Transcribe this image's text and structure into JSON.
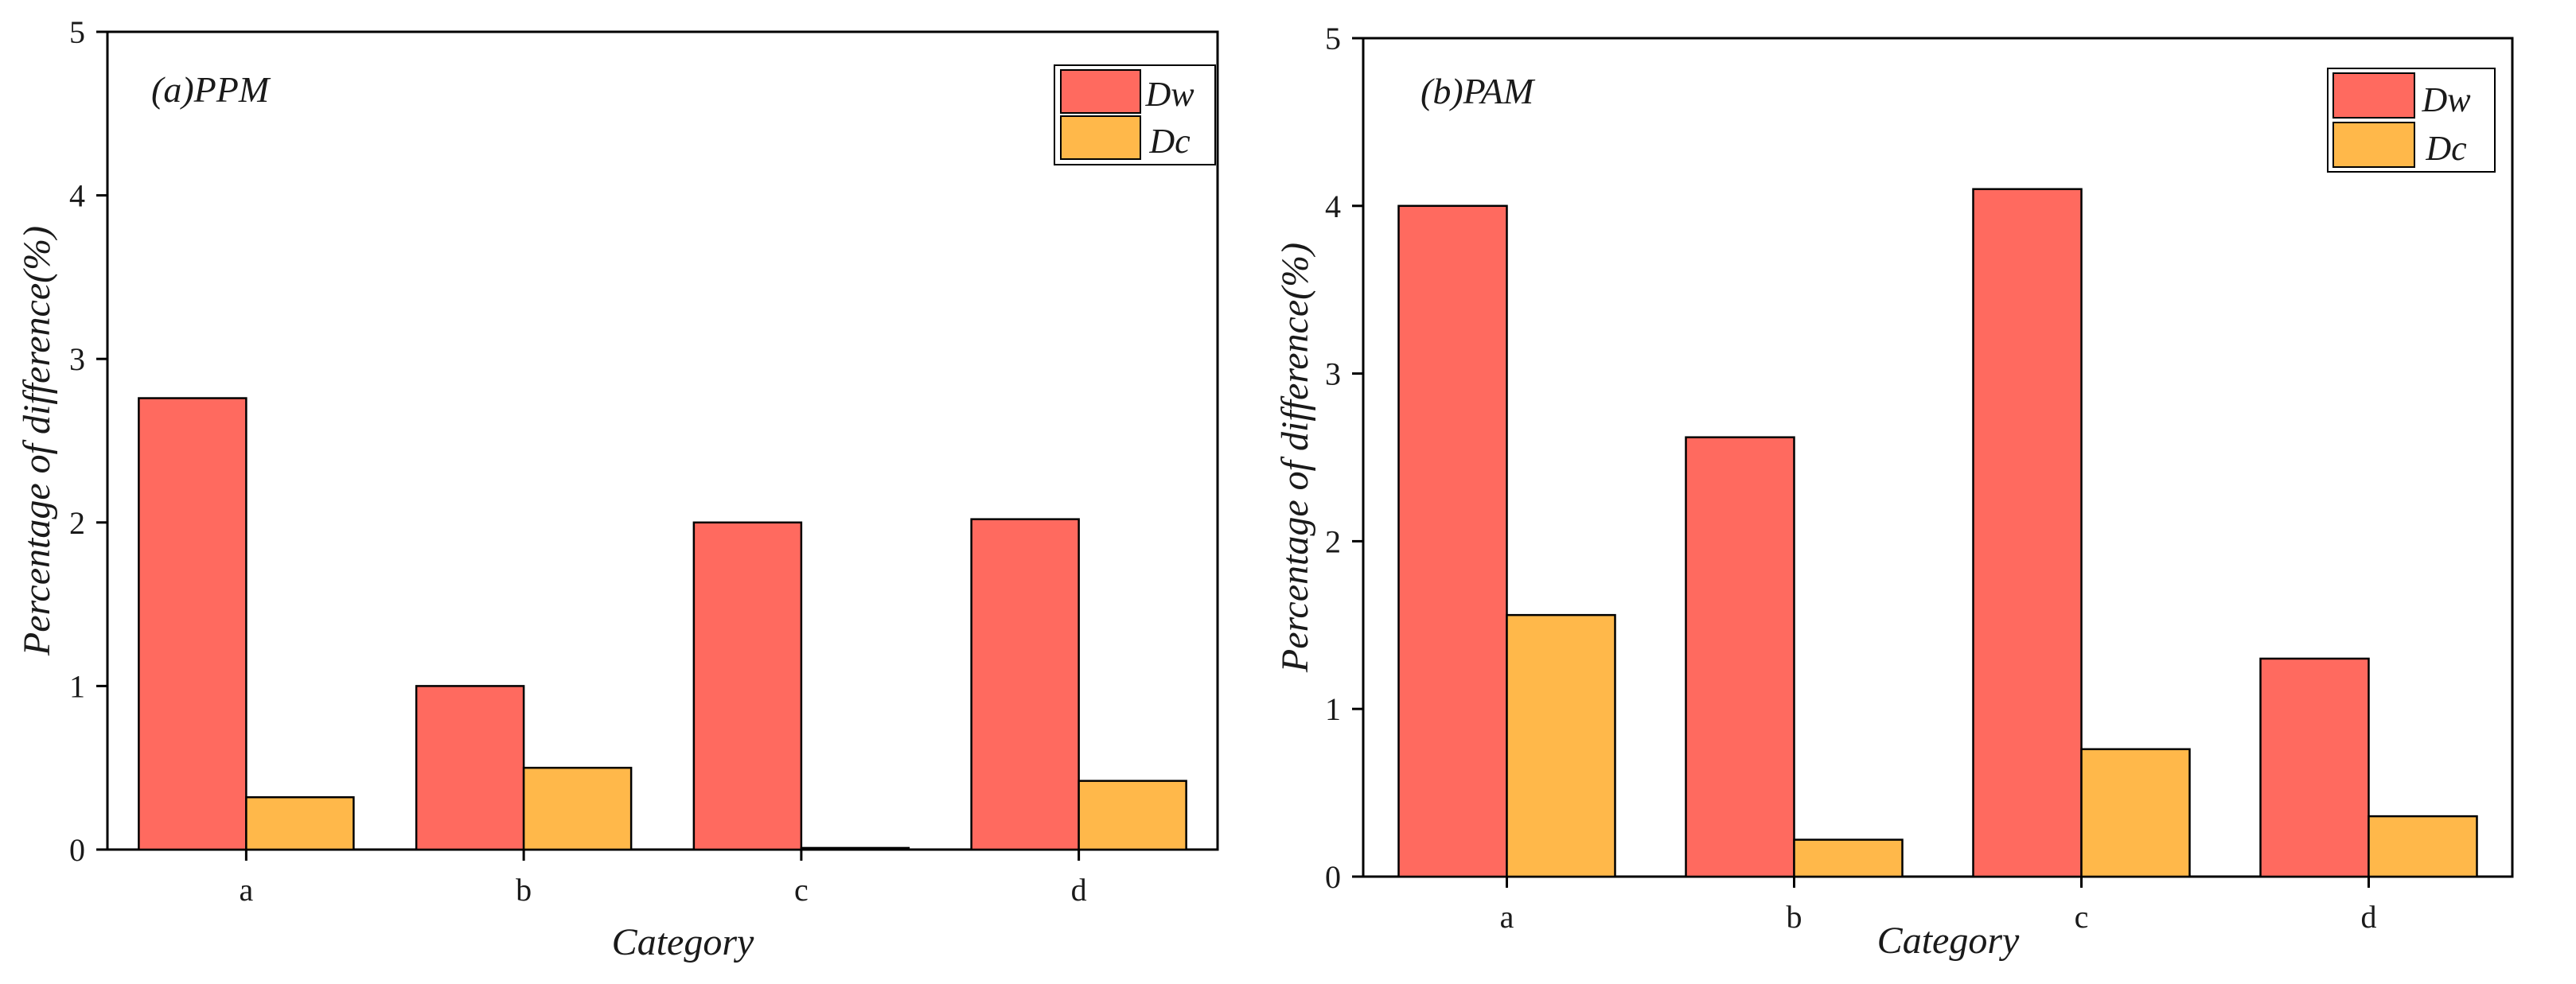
{
  "chart_data": [
    {
      "type": "bar",
      "title": "(a)PPM",
      "xlabel": "Category",
      "ylabel": "Percentage of difference(%)",
      "ylim": [
        0,
        5
      ],
      "yticks": [
        "0",
        "1",
        "2",
        "3",
        "4",
        "5"
      ],
      "categories": [
        "a",
        "b",
        "c",
        "d"
      ],
      "series": [
        {
          "name": "Dw",
          "color": "#ff6a5f",
          "values": [
            2.76,
            1.0,
            2.0,
            2.02
          ]
        },
        {
          "name": "Dc",
          "color": "#ffb84a",
          "values": [
            0.32,
            0.5,
            0.01,
            0.42
          ]
        }
      ],
      "legend_position": "top-right"
    },
    {
      "type": "bar",
      "title": "(b)PAM",
      "xlabel": "Category",
      "ylabel": "Percentage of difference(%)",
      "ylim": [
        0,
        5
      ],
      "yticks": [
        "0",
        "1",
        "2",
        "3",
        "4",
        "5"
      ],
      "categories": [
        "a",
        "b",
        "c",
        "d"
      ],
      "series": [
        {
          "name": "Dw",
          "color": "#ff6a5f",
          "values": [
            4.0,
            2.62,
            4.1,
            1.3
          ]
        },
        {
          "name": "Dc",
          "color": "#ffb84a",
          "values": [
            1.56,
            0.22,
            0.76,
            0.36
          ]
        }
      ],
      "legend_position": "top-right"
    }
  ]
}
